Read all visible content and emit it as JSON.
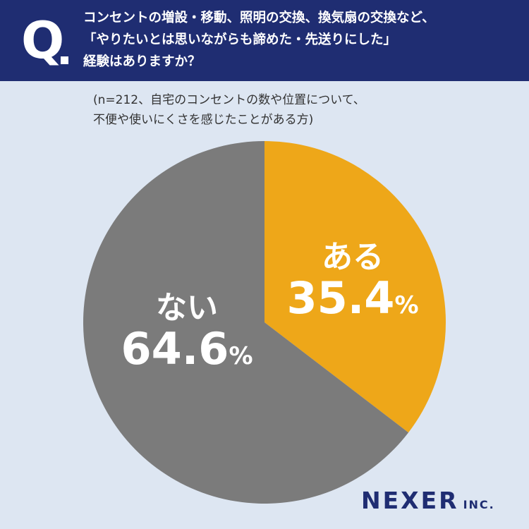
{
  "header": {
    "q_letter": "Q",
    "question_lines": [
      "コンセントの増設・移動、照明の交換、換気扇の交換など、",
      "「やりたいとは思いながらも諦めた・先送りにした」",
      "経験はありますか？"
    ]
  },
  "note_lines": [
    "(n=212、自宅のコンセントの数や位置について、",
    "不便や使いにくさを感じたことがある方)"
  ],
  "chart_data": {
    "type": "pie",
    "unit": "%",
    "slices": [
      {
        "label": "ある",
        "value": 35.4,
        "value_text": "35.4",
        "color": "#eea719"
      },
      {
        "label": "ない",
        "value": 64.6,
        "value_text": "64.6",
        "color": "#7b7b7b"
      }
    ]
  },
  "logo": {
    "main": "NEXER",
    "sub": "INC."
  }
}
